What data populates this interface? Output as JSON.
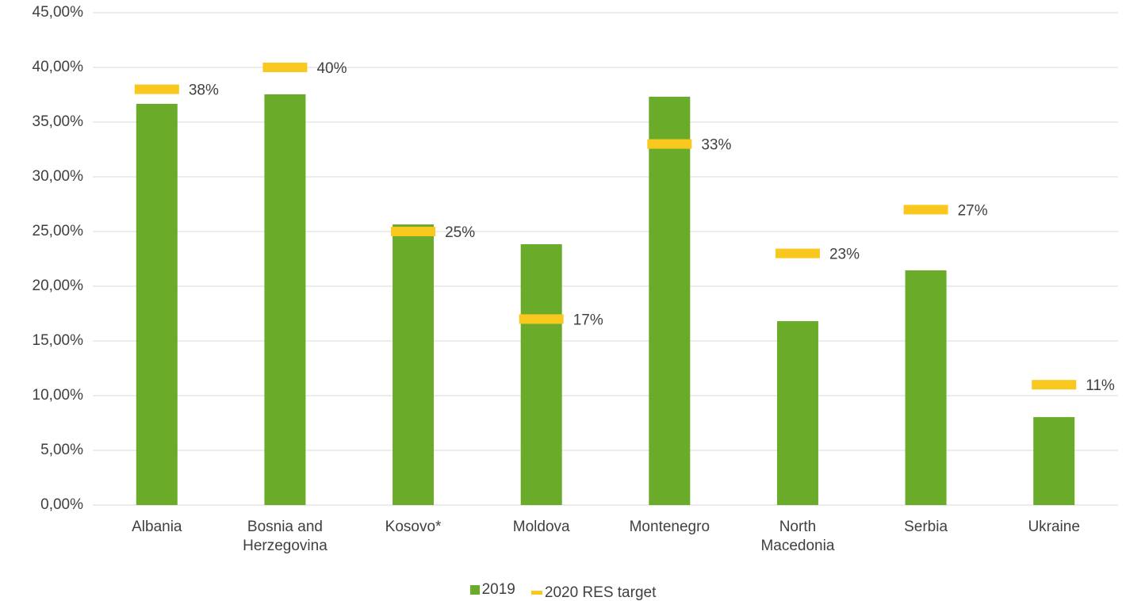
{
  "chart_data": {
    "type": "bar",
    "categories": [
      "Albania",
      "Bosnia and Herzegovina",
      "Kosovo*",
      "Moldova",
      "Montenegro",
      "North Macedonia",
      "Serbia",
      "Ukraine"
    ],
    "series": [
      {
        "name": "2019",
        "color": "#6aac2a",
        "type": "bar",
        "values": [
          36.67,
          37.54,
          25.65,
          23.84,
          37.32,
          16.81,
          21.45,
          8.04
        ]
      },
      {
        "name": "2020 RES target",
        "color": "#f9c81f",
        "type": "dash",
        "values": [
          38,
          40,
          25,
          17,
          33,
          23,
          27,
          11
        ],
        "value_labels": [
          "38%",
          "40%",
          "25%",
          "17%",
          "33%",
          "23%",
          "27%",
          "11%"
        ]
      }
    ],
    "ylim": [
      0,
      45
    ],
    "yticks": [
      {
        "value": 0,
        "label": "0,00%"
      },
      {
        "value": 5,
        "label": "5,00%"
      },
      {
        "value": 10,
        "label": "10,00%"
      },
      {
        "value": 15,
        "label": "15,00%"
      },
      {
        "value": 20,
        "label": "20,00%"
      },
      {
        "value": 25,
        "label": "25,00%"
      },
      {
        "value": 30,
        "label": "30,00%"
      },
      {
        "value": 35,
        "label": "35,00%"
      },
      {
        "value": 40,
        "label": "40,00%"
      },
      {
        "value": 45,
        "label": "45,00%"
      }
    ],
    "grid": true
  }
}
